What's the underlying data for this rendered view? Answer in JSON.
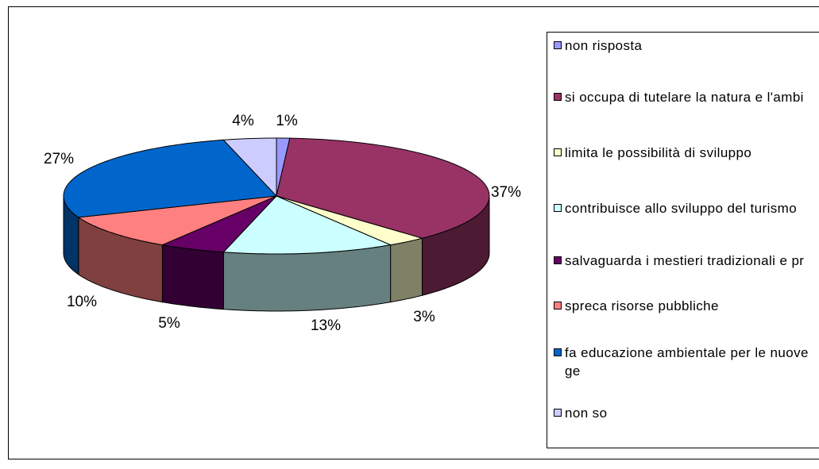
{
  "chart_data": {
    "type": "pie3d",
    "categories": [
      "non risposta",
      "si occupa di tutelare la natura e l'ambi",
      "limita le possibilità di sviluppo",
      "contribuisce allo sviluppo del turismo",
      "salvaguarda i mestieri tradizionali e pr",
      "spreca risorse pubbliche",
      "fa educazione ambientale per le nuove ge",
      "non so"
    ],
    "values": [
      1,
      37,
      3,
      13,
      5,
      10,
      27,
      4
    ],
    "value_labels": [
      "1%",
      "37%",
      "3%",
      "13%",
      "5%",
      "10%",
      "27%",
      "4%"
    ],
    "colors": [
      "#9999ff",
      "#993366",
      "#ffffcc",
      "#ccffff",
      "#660066",
      "#ff8080",
      "#0066cc",
      "#ccccff"
    ],
    "legend": "right"
  }
}
